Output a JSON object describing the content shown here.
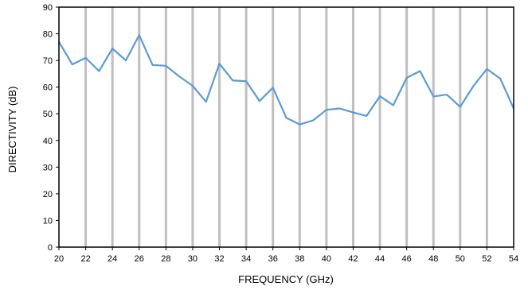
{
  "chart_data": {
    "type": "line",
    "xlabel": "FREQUENCY (GHz)",
    "ylabel": "DIRECTIVITY (dB)",
    "xlim": [
      20,
      54
    ],
    "ylim": [
      0,
      90
    ],
    "x_ticks": [
      20,
      22,
      24,
      26,
      28,
      30,
      32,
      34,
      36,
      38,
      40,
      42,
      44,
      46,
      48,
      50,
      52,
      54
    ],
    "y_ticks": [
      0,
      10,
      20,
      30,
      40,
      50,
      60,
      70,
      80,
      90
    ],
    "grid": "vertical",
    "series_color": "#5b9bd5",
    "grid_color": "#bfbfbf",
    "series": [
      {
        "x": [
          20,
          21,
          22,
          23,
          24,
          25,
          26,
          27,
          28,
          29,
          30,
          31,
          32,
          33,
          34,
          35,
          36,
          37,
          38,
          39,
          40,
          41,
          42,
          43,
          44,
          45,
          46,
          47,
          48,
          49,
          50,
          51,
          52,
          53,
          54
        ],
        "values": [
          77,
          68.5,
          71,
          66,
          74.5,
          70,
          79.5,
          68.3,
          68,
          64,
          60.5,
          54.5,
          68.8,
          62.5,
          62.2,
          54.8,
          59.8,
          48.5,
          46,
          47.5,
          51.5,
          52,
          50.5,
          49.2,
          56.6,
          53.2,
          63.5,
          66,
          56.5,
          57.2,
          52.6,
          60.5,
          66.8,
          63.2,
          52
        ]
      }
    ]
  }
}
